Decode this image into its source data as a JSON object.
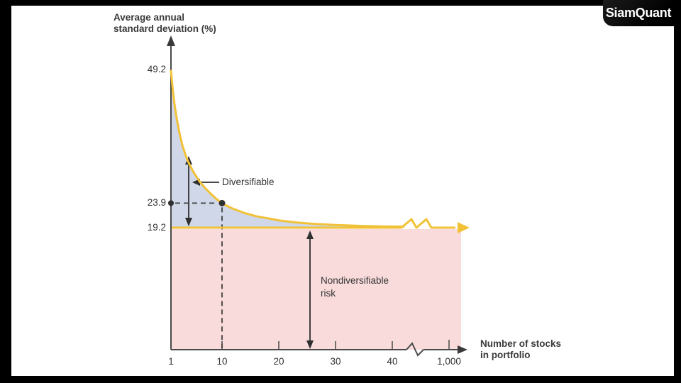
{
  "brand": {
    "logo_text": "SiamQuant"
  },
  "chart_data": {
    "type": "area",
    "title": "Average annual standard deviation (%)",
    "y_axis": {
      "label_line1": "Average annual",
      "label_line2": "standard deviation (%)",
      "ticks": [
        "49.2",
        "23.9",
        "19.2"
      ]
    },
    "x_axis": {
      "label_line1": "Number of stocks",
      "label_line2": "in portfolio",
      "ticks": [
        "1",
        "10",
        "20",
        "30",
        "40",
        "1,000"
      ],
      "axis_break_between": [
        "40",
        "1,000"
      ]
    },
    "series": [
      {
        "name": "average-annual-standard-deviation",
        "x": [
          1,
          1.3,
          1.6,
          2,
          2.5,
          3,
          3.5,
          4,
          4.5,
          5,
          6,
          7,
          8,
          9,
          10,
          11,
          12,
          14,
          16,
          18,
          20,
          23,
          26,
          30,
          34,
          38,
          42
        ],
        "y": [
          49.2,
          45.8,
          43.0,
          40.2,
          37.3,
          35.0,
          33.3,
          31.9,
          30.8,
          29.8,
          28.1,
          26.8,
          25.7,
          24.7,
          23.9,
          23.3,
          22.8,
          22.0,
          21.4,
          21.0,
          20.6,
          20.2,
          19.95,
          19.7,
          19.55,
          19.45,
          19.4
        ]
      }
    ],
    "initial_sd_one_stock": 49.2,
    "marked_point": {
      "x": 10,
      "y": 23.9
    },
    "nondiversifiable_level": 19.2,
    "annotations": {
      "diversifiable": "Diversifiable",
      "nondiversifiable_line1": "Nondiversifiable",
      "nondiversifiable_line2": "risk"
    },
    "colors": {
      "curve": "#F1C237",
      "diversifiable_area": "#CFD7E9",
      "nondiversifiable_area": "#F9DBDB",
      "axis": "#4A4A4A",
      "dash": "#3F3F3F"
    }
  }
}
